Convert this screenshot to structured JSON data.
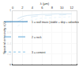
{
  "chart_data": {
    "type": "line",
    "x_label": "λ (µm)",
    "y_label": "Spectral emissivity ε(λ)",
    "x": [
      1,
      2,
      3,
      4,
      5,
      6,
      7,
      8,
      9,
      10,
      11,
      12
    ],
    "series": [
      {
        "name": "1 = wall mass (stable + dep + adsorbed stones)",
        "color": "#2f7fb8",
        "line_style": "solid",
        "values": [
          0.86,
          0.9,
          0.92,
          0.93,
          0.93,
          0.94,
          0.94,
          0.95,
          0.95,
          0.95,
          0.95,
          0.95
        ]
      },
      {
        "name": "2 = rock",
        "color": "#5fa8d8",
        "line_style": "dash",
        "values": [
          0.8,
          0.85,
          0.88,
          0.9,
          0.91,
          0.91,
          0.92,
          0.92,
          0.93,
          0.93,
          0.93,
          0.94
        ]
      },
      {
        "name": "3 = cement",
        "color": "#8fc6e8",
        "line_style": "dot",
        "values": [
          0.72,
          0.78,
          0.82,
          0.84,
          0.86,
          0.87,
          0.87,
          0.88,
          0.88,
          0.89,
          0.89,
          0.9
        ]
      }
    ],
    "xlim": [
      0,
      13
    ],
    "xticks": [
      0,
      2,
      4,
      6,
      8,
      10,
      12
    ],
    "ylim": [
      0,
      1
    ],
    "yticks": [
      0,
      0.2,
      0.4,
      0.6,
      0.8,
      1
    ],
    "grid": true,
    "legend": "lower left"
  }
}
